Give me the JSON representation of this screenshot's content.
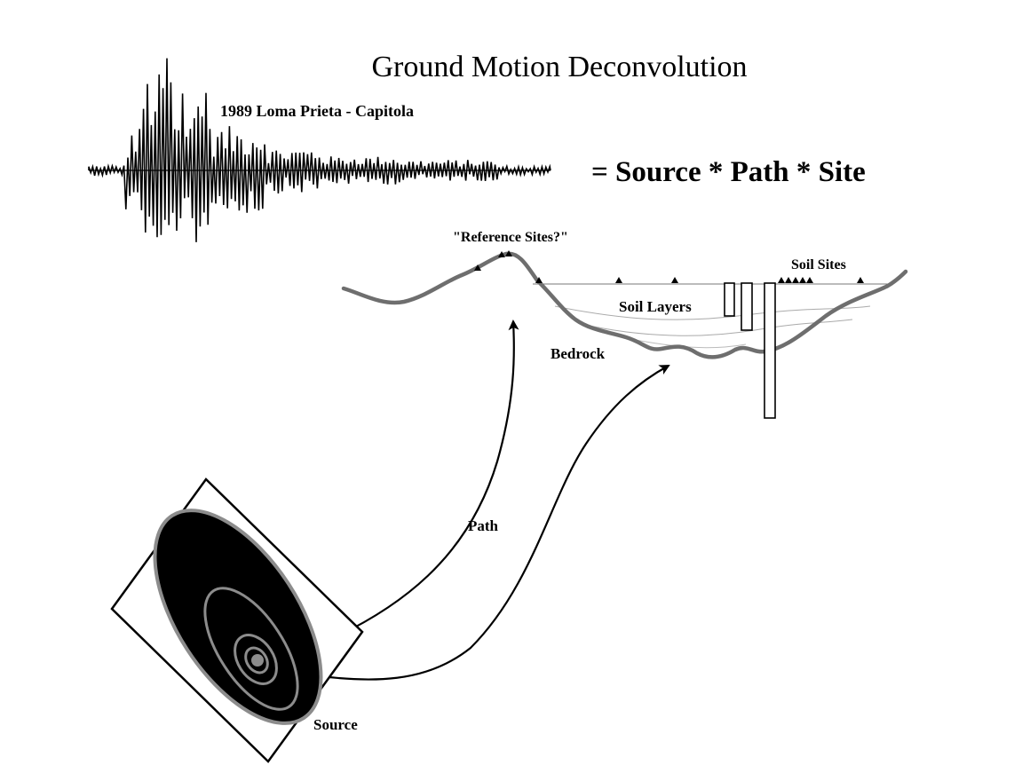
{
  "title": "Ground Motion Deconvolution",
  "seismogram_label": "1989 Loma Prieta - Capitola",
  "equation": "=  Source * Path * Site",
  "labels": {
    "reference_sites": "\"Reference Sites?\"",
    "soil_sites": "Soil Sites",
    "soil_layers": "Soil Layers",
    "bedrock": "Bedrock",
    "path": "Path",
    "source": "Source"
  },
  "colors": {
    "ground_line": "#6e6e6e",
    "source_fill": "#000000",
    "source_rings": "#8c8c8c",
    "ink": "#000000"
  }
}
